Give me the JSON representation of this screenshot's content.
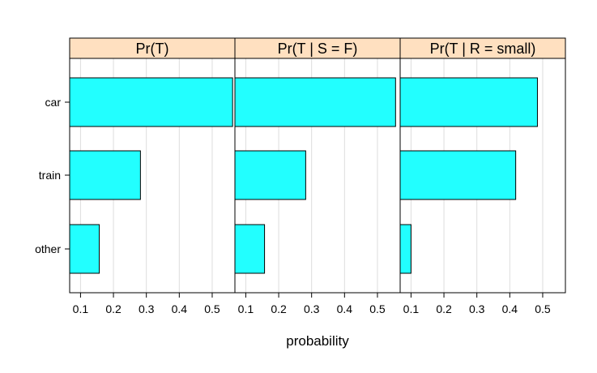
{
  "chart_data": {
    "type": "bar",
    "orientation": "horizontal",
    "xlabel": "probability",
    "ylabel": "",
    "categories": [
      "car",
      "train",
      "other"
    ],
    "xlim": [
      0.067,
      0.569
    ],
    "x_ticks": [
      "0.1",
      "0.2",
      "0.3",
      "0.4",
      "0.5"
    ],
    "grid": true,
    "colors": {
      "bar_fill": "#22FFFF",
      "strip_fill": "#FFE0C0",
      "grid": "#DDDDDD"
    },
    "panels": [
      {
        "title": "Pr(T)",
        "values": [
          0.562,
          0.282,
          0.157
        ]
      },
      {
        "title": "Pr(T | S = F)",
        "values": [
          0.555,
          0.282,
          0.157
        ]
      },
      {
        "title": "Pr(T | R = small)",
        "values": [
          0.484,
          0.418,
          0.1
        ]
      }
    ]
  }
}
